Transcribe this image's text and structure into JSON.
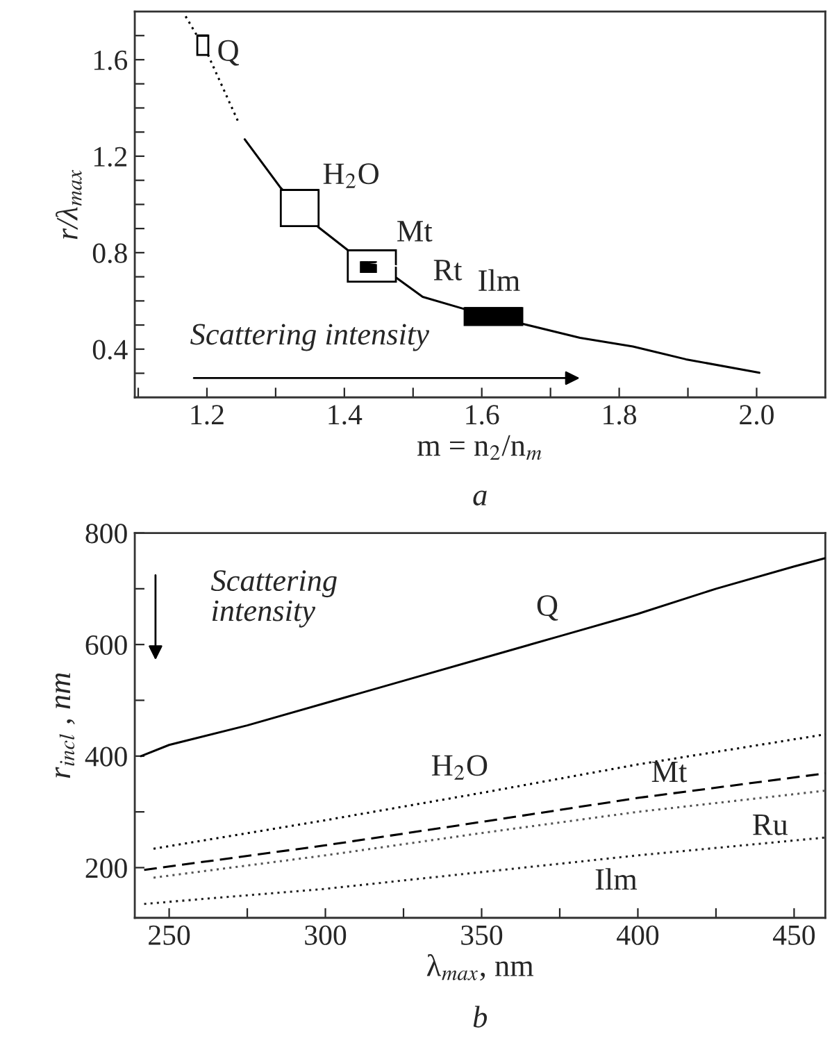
{
  "chart_data": [
    {
      "type": "line",
      "xlabel": "m = n$_{2}$/n$_{m}$",
      "ylabel": "r/λ$_{max}$",
      "xlim": [
        1.095,
        2.1
      ],
      "ylim": [
        0.2,
        1.8
      ],
      "xticks": [
        {
          "value": 1.1,
          "label": null
        },
        1.2,
        {
          "value": 1.3,
          "label": null
        },
        1.4,
        {
          "value": 1.5,
          "label": null
        },
        1.6,
        {
          "value": 1.7,
          "label": null
        },
        1.8,
        {
          "value": 1.9,
          "label": null
        },
        {
          "value": 2.0,
          "label": "2.0"
        }
      ],
      "yticks": [
        {
          "value": 0.3,
          "label": null
        },
        0.4,
        {
          "value": 0.5,
          "label": null
        },
        {
          "value": 0.6,
          "label": null
        },
        {
          "value": 0.7,
          "label": null
        },
        0.8,
        {
          "value": 0.9,
          "label": null
        },
        {
          "value": 1.0,
          "label": null
        },
        {
          "value": 1.1,
          "label": null
        },
        1.2,
        {
          "value": 1.3,
          "label": null
        },
        {
          "value": 1.4,
          "label": null
        },
        {
          "value": 1.5,
          "label": null
        },
        1.6,
        {
          "value": 1.7,
          "label": null
        }
      ],
      "grid": false,
      "legend": false,
      "series": [
        {
          "line_style": "dotted",
          "color": "#000000",
          "x": [
            1.169,
            1.2,
            1.246
          ],
          "values": [
            1.78,
            1.63,
            1.34
          ]
        },
        {
          "line_style": "solid",
          "color": "#000000",
          "x": [
            1.255,
            1.307,
            1.362,
            1.407,
            1.476,
            1.514,
            1.575,
            1.658,
            1.743,
            1.82,
            1.897,
            2.004
          ],
          "values": [
            1.27,
            1.07,
            0.906,
            0.806,
            0.695,
            0.617,
            0.566,
            0.506,
            0.447,
            0.411,
            0.358,
            0.302
          ]
        },
        {
          "type": "bar",
          "color": "#000000",
          "colors": [
            "#ffffff",
            "#ffffff",
            "#ffffff"
          ],
          "x": [
            1.194,
            1.335,
            1.44
          ],
          "xerrors": [
            0.008,
            0.0275,
            0.035
          ],
          "base": [
            1.62,
            0.91,
            0.68
          ],
          "values": [
            0.08,
            0.15,
            0.13
          ]
        },
        {
          "type": "bar",
          "color": "#000000",
          "colors": [
            "#000000",
            "#000000"
          ],
          "x": [
            1.435,
            1.617
          ],
          "xerrors": [
            0.011,
            0.042
          ],
          "base": [
            0.72,
            0.5
          ],
          "values": [
            0.04,
            0.07
          ]
        }
      ],
      "annotations": [
        {
          "text": "Q",
          "x": 1.194,
          "y": 1.7
        },
        {
          "text": "H$_{2}$O",
          "x": 1.335,
          "y": 1.06
        },
        {
          "text": "Mt",
          "x": 1.44,
          "y": 0.81
        },
        {
          "text": "Rt",
          "x": 1.435,
          "y": 0.76
        },
        {
          "text": "Ilm",
          "x": 1.617,
          "y": 0.57
        },
        "Scattering intensity",
        "a"
      ]
    },
    {
      "type": "line",
      "xlabel": "λ$_{max}$, nm",
      "ylabel": "r$_{incl}$ , nm",
      "xlim": [
        239,
        460
      ],
      "ylim": [
        110,
        800
      ],
      "xticks": [
        250,
        {
          "value": 275,
          "label": null
        },
        300,
        {
          "value": 325,
          "label": null
        },
        350,
        {
          "value": 375,
          "label": null
        },
        400,
        {
          "value": 425,
          "label": null
        },
        450
      ],
      "yticks": [
        200,
        {
          "value": 300,
          "label": null
        },
        400,
        {
          "value": 500,
          "label": null
        },
        600,
        {
          "value": 700,
          "label": null
        },
        800
      ],
      "grid": false,
      "legend": false,
      "series": [
        {
          "line_style": "solid",
          "color": "#000000",
          "x": [
            241,
            250,
            275,
            300,
            325,
            350,
            375,
            400,
            425,
            450,
            460
          ],
          "values": [
            400,
            420,
            455,
            495,
            535,
            575,
            615,
            655,
            700,
            740,
            755
          ]
        },
        {
          "line_style": "dotted",
          "color": "#000000",
          "x": [
            245,
            300,
            350,
            400,
            460
          ],
          "values": [
            234,
            285,
            334,
            385,
            439
          ]
        },
        {
          "line_style": "dashed",
          "color": "#000000",
          "x": [
            242,
            300,
            350,
            400,
            460
          ],
          "values": [
            196,
            240,
            282,
            325,
            369
          ]
        },
        {
          "line_style": "dotted",
          "color": "#555555",
          "x": [
            245,
            300,
            350,
            400,
            460
          ],
          "values": [
            182,
            222,
            262,
            300,
            338
          ]
        },
        {
          "line_style": "dotted",
          "color": "#222222",
          "x": [
            242,
            300,
            350,
            400,
            460
          ],
          "values": [
            135,
            162,
            192,
            222,
            254
          ]
        }
      ],
      "annotations": [
        {
          "text": "Q",
          "x": 371,
          "y": 617
        },
        {
          "text": "H$_{2}$O",
          "x": 343,
          "y": 327
        },
        {
          "text": "Mt",
          "x": 410,
          "y": 333
        },
        "Ru",
        {
          "text": "Ilm",
          "x": 393,
          "y": 218
        },
        "Scattering\nintensity",
        "b"
      ]
    }
  ]
}
